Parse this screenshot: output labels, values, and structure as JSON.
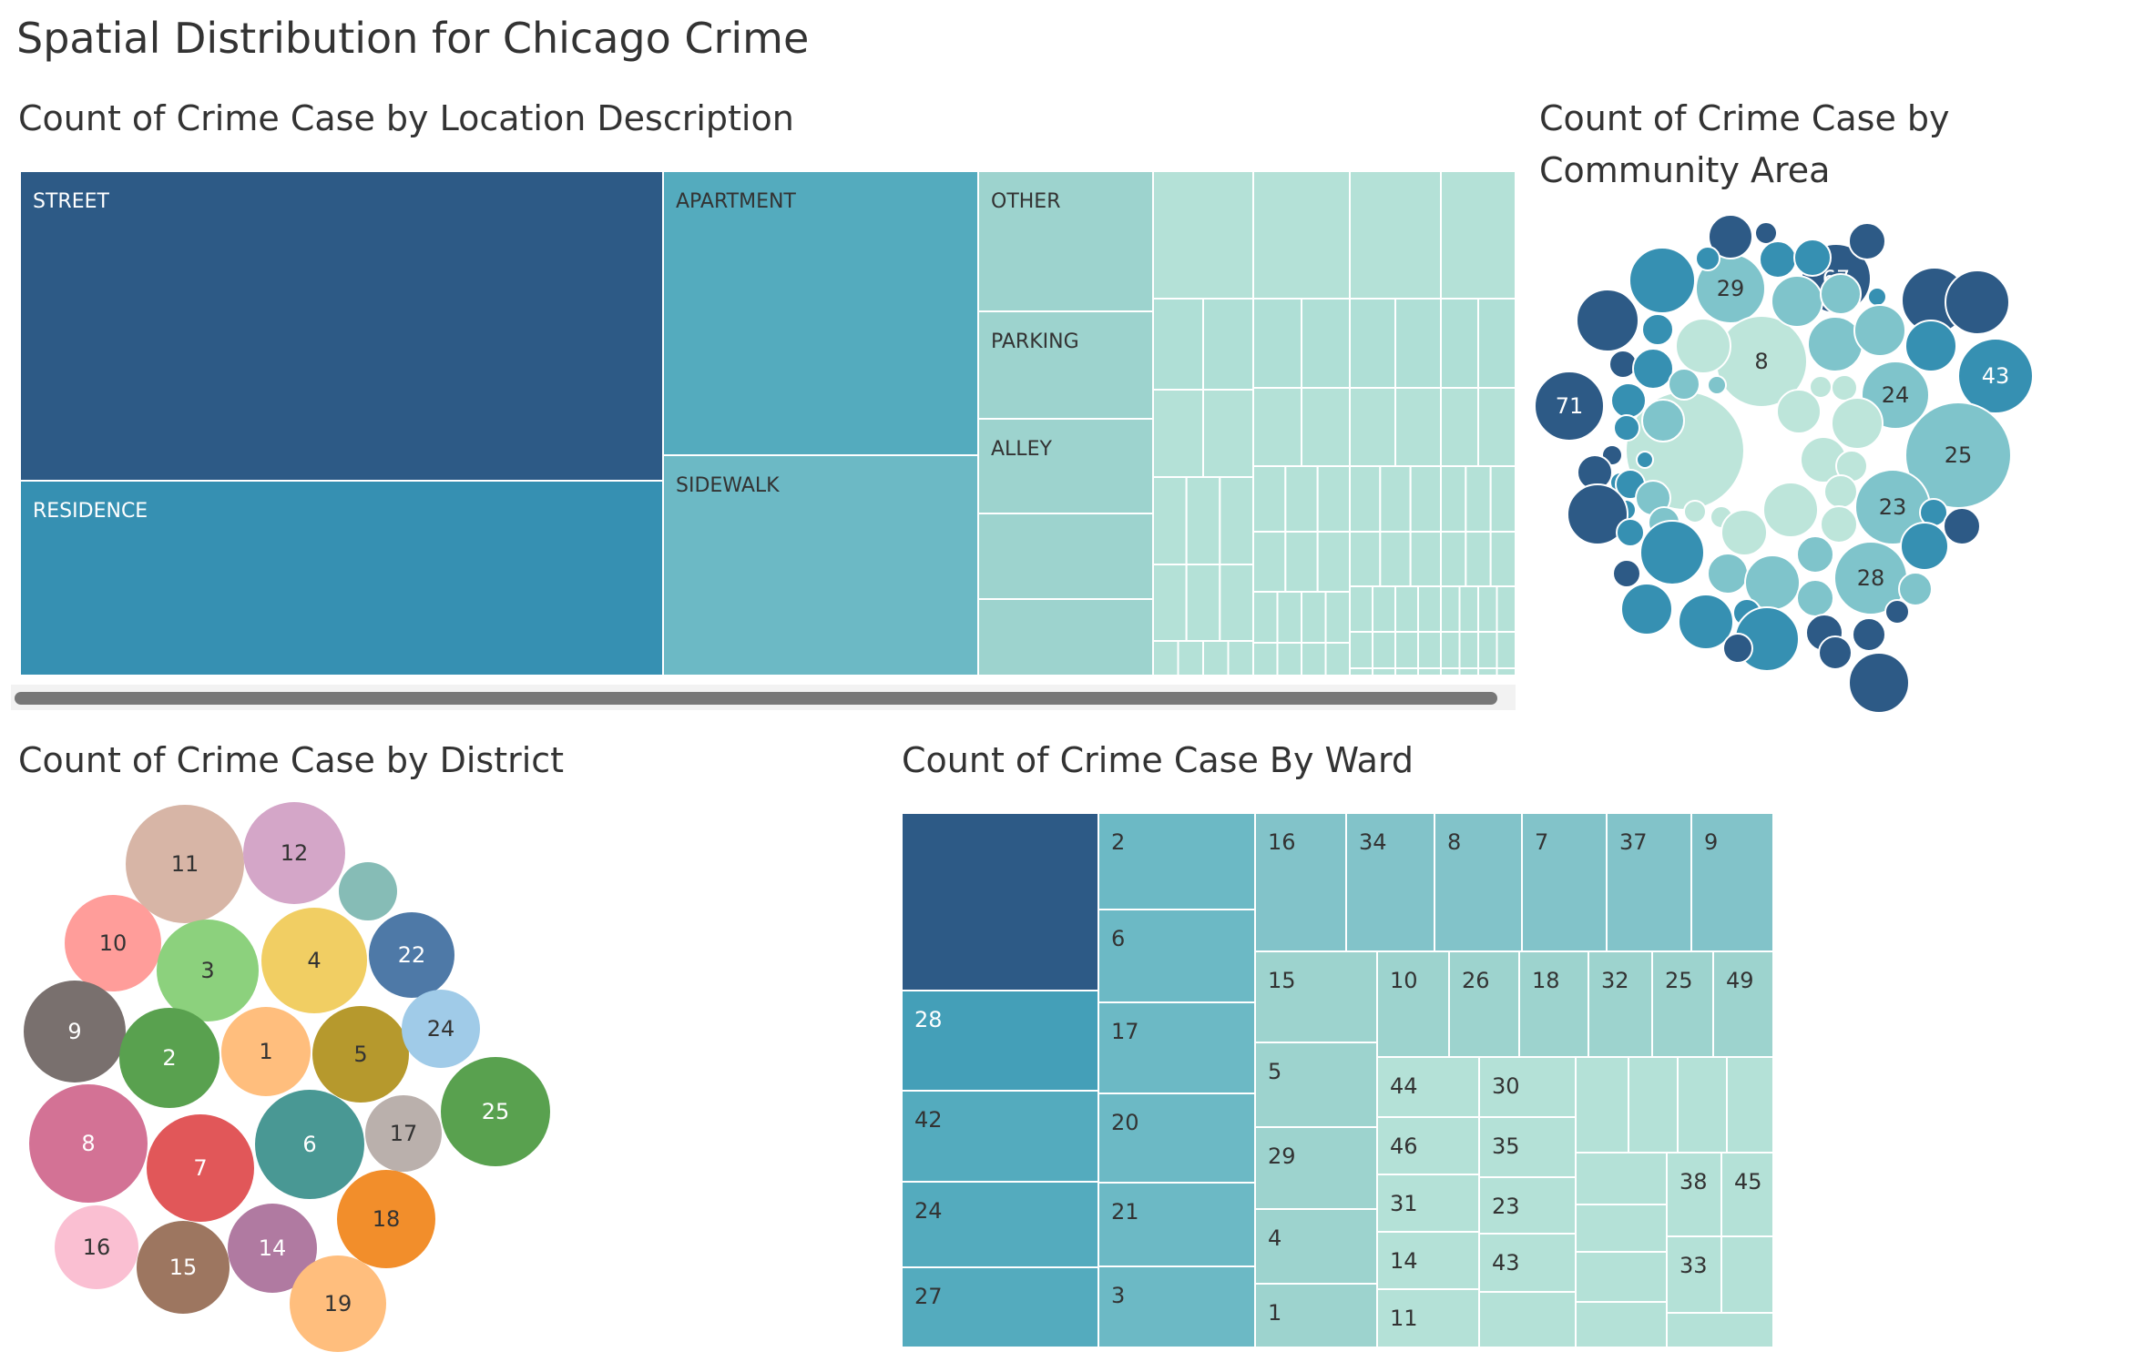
{
  "dashboard": {
    "title": "Spatial Distribution for Chicago Crime",
    "colors": {
      "title": "#333333",
      "background": "#ffffff",
      "treemap_border": "#ffffff",
      "scrollbar": "#777777",
      "scrollbar_track": "#f2f2f2"
    }
  },
  "chart_data": [
    {
      "type": "treemap",
      "title": "Count of Crime Case by Location Description",
      "labeled_cells": [
        "STREET",
        "RESIDENCE",
        "APARTMENT",
        "SIDEWALK",
        "OTHER",
        "PARKING",
        "ALLEY"
      ],
      "color_scale": [
        "#2d5a86",
        "#3690b2",
        "#54abbe",
        "#6cb9c5",
        "#9dd3ce",
        "#b4e1d7"
      ],
      "unlabeled_categories_note": "many small categories shown as unlabeled cells",
      "scrollbar": true
    },
    {
      "type": "bubble",
      "title_lines": [
        "Count of Crime Case by",
        "Community Area"
      ],
      "labeled_bubbles": [
        "29",
        "67",
        "8",
        "43",
        "71",
        "24",
        "25",
        "23",
        "28"
      ],
      "color_scale": [
        "#2d5a86",
        "#3690b2",
        "#7fc4cb",
        "#bde5da"
      ]
    },
    {
      "type": "bubble",
      "title": "Count of Crime Case by District",
      "bubbles": [
        {
          "label": "11",
          "color": "#d7b5a6"
        },
        {
          "label": "12",
          "color": "#d4a6c8"
        },
        {
          "label": "",
          "color": "#86bcb6"
        },
        {
          "label": "10",
          "color": "#ff9d9a"
        },
        {
          "label": "3",
          "color": "#8cd17d"
        },
        {
          "label": "4",
          "color": "#f1ce63"
        },
        {
          "label": "22",
          "color": "#4e79a7"
        },
        {
          "label": "9",
          "color": "#79706e"
        },
        {
          "label": "2",
          "color": "#59a14f"
        },
        {
          "label": "1",
          "color": "#ffbe7d"
        },
        {
          "label": "5",
          "color": "#b6992d"
        },
        {
          "label": "24",
          "color": "#a0cbe8"
        },
        {
          "label": "8",
          "color": "#d37295"
        },
        {
          "label": "7",
          "color": "#e15759"
        },
        {
          "label": "6",
          "color": "#499894"
        },
        {
          "label": "17",
          "color": "#bab0ac"
        },
        {
          "label": "25",
          "color": "#59a14f"
        },
        {
          "label": "16",
          "color": "#fabfd2"
        },
        {
          "label": "15",
          "color": "#9d7660"
        },
        {
          "label": "14",
          "color": "#b07aa1"
        },
        {
          "label": "18",
          "color": "#f28e2b"
        },
        {
          "label": "19",
          "color": "#ffbe7d"
        }
      ]
    },
    {
      "type": "treemap",
      "title": "Count of Crime Case By Ward",
      "labeled_cells": [
        "2",
        "6",
        "17",
        "20",
        "21",
        "3",
        "28",
        "42",
        "24",
        "27",
        "16",
        "34",
        "8",
        "7",
        "37",
        "9",
        "15",
        "10",
        "26",
        "18",
        "32",
        "25",
        "49",
        "5",
        "29",
        "4",
        "1",
        "44",
        "30",
        "46",
        "35",
        "31",
        "23",
        "14",
        "43",
        "11",
        "38",
        "45",
        "33"
      ],
      "color_scale": [
        "#2d5a86",
        "#449fb8",
        "#54abbe",
        "#6cb9c5",
        "#82c3c9",
        "#9dd3ce",
        "#b4e1d7"
      ]
    }
  ]
}
